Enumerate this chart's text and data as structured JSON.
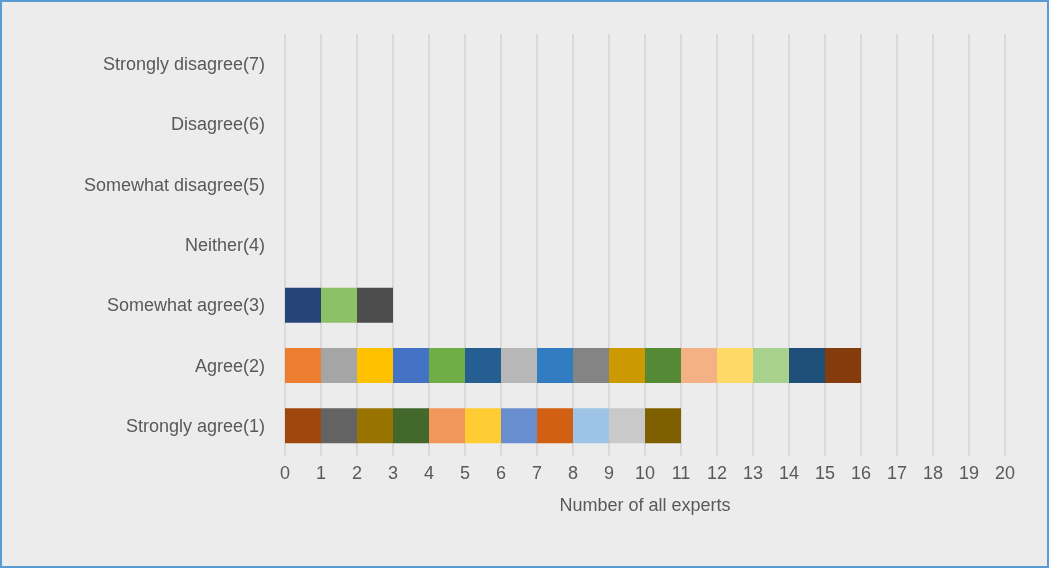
{
  "chart_data": {
    "type": "bar",
    "orientation": "horizontal",
    "stacked": true,
    "xlabel": "Number of all experts",
    "categories": [
      "Strongly disagree(7)",
      "Disagree(6)",
      "Somewhat disagree(5)",
      "Neither(4)",
      "Somewhat agree(3)",
      "Agree(2)",
      "Strongly agree(1)"
    ],
    "xlim": [
      0,
      20
    ],
    "xticks": [
      0,
      1,
      2,
      3,
      4,
      5,
      6,
      7,
      8,
      9,
      10,
      11,
      12,
      13,
      14,
      15,
      16,
      17,
      18,
      19,
      20
    ],
    "grid": "x",
    "series": [
      {
        "values": [
          null,
          null,
          null,
          null,
          1,
          1,
          1
        ],
        "colors": [
          null,
          null,
          null,
          null,
          "#264478",
          "#ed7d31",
          "#9e480e"
        ]
      },
      {
        "values": [
          null,
          null,
          null,
          null,
          1,
          1,
          1
        ],
        "colors": [
          null,
          null,
          null,
          null,
          "#8cc168",
          "#a5a5a5",
          "#636363"
        ]
      },
      {
        "values": [
          null,
          null,
          null,
          null,
          1,
          1,
          1
        ],
        "colors": [
          null,
          null,
          null,
          null,
          "#4d4d4d",
          "#ffc000",
          "#997300"
        ]
      },
      {
        "values": [
          null,
          null,
          null,
          null,
          null,
          1,
          1
        ],
        "colors": [
          null,
          null,
          null,
          null,
          null,
          "#4472c4",
          "#43682b"
        ]
      },
      {
        "values": [
          null,
          null,
          null,
          null,
          null,
          1,
          1
        ],
        "colors": [
          null,
          null,
          null,
          null,
          null,
          "#70ad47",
          "#f1975a"
        ]
      },
      {
        "values": [
          null,
          null,
          null,
          null,
          null,
          1,
          1
        ],
        "colors": [
          null,
          null,
          null,
          null,
          null,
          "#255e91",
          "#ffcd33"
        ]
      },
      {
        "values": [
          null,
          null,
          null,
          null,
          null,
          1,
          1
        ],
        "colors": [
          null,
          null,
          null,
          null,
          null,
          "#b7b7b7",
          "#698ed0"
        ]
      },
      {
        "values": [
          null,
          null,
          null,
          null,
          null,
          1,
          1
        ],
        "colors": [
          null,
          null,
          null,
          null,
          null,
          "#327dc2",
          "#d26012"
        ]
      },
      {
        "values": [
          null,
          null,
          null,
          null,
          null,
          1,
          1
        ],
        "colors": [
          null,
          null,
          null,
          null,
          null,
          "#848484",
          "#9dc3e6"
        ]
      },
      {
        "values": [
          null,
          null,
          null,
          null,
          null,
          1,
          1
        ],
        "colors": [
          null,
          null,
          null,
          null,
          null,
          "#cc9a00",
          "#c9c9c9"
        ]
      },
      {
        "values": [
          null,
          null,
          null,
          null,
          null,
          1,
          1
        ],
        "colors": [
          null,
          null,
          null,
          null,
          null,
          "#548a36",
          "#7f6000"
        ]
      },
      {
        "values": [
          null,
          null,
          null,
          null,
          null,
          1,
          null
        ],
        "colors": [
          null,
          null,
          null,
          null,
          null,
          "#f4b183",
          null
        ]
      },
      {
        "values": [
          null,
          null,
          null,
          null,
          null,
          1,
          null
        ],
        "colors": [
          null,
          null,
          null,
          null,
          null,
          "#ffd966",
          null
        ]
      },
      {
        "values": [
          null,
          null,
          null,
          null,
          null,
          1,
          null
        ],
        "colors": [
          null,
          null,
          null,
          null,
          null,
          "#a9d18e",
          null
        ]
      },
      {
        "values": [
          null,
          null,
          null,
          null,
          null,
          1,
          null
        ],
        "colors": [
          null,
          null,
          null,
          null,
          null,
          "#1f4e79",
          null
        ]
      },
      {
        "values": [
          null,
          null,
          null,
          null,
          null,
          1,
          null
        ],
        "colors": [
          null,
          null,
          null,
          null,
          null,
          "#843c0c",
          null
        ]
      }
    ]
  }
}
